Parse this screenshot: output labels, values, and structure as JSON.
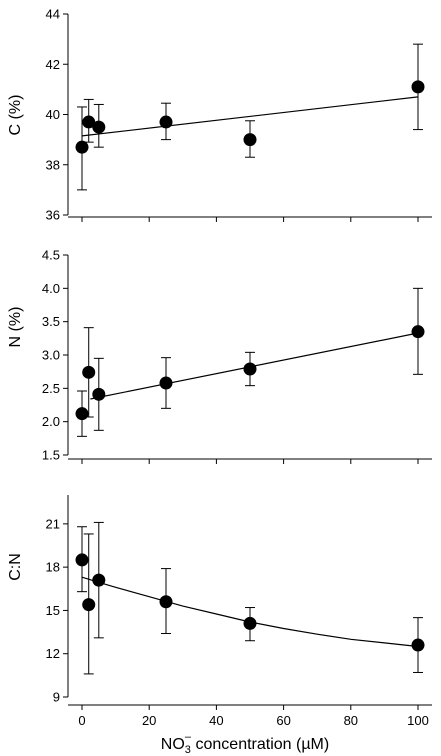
{
  "chart_data": [
    {
      "type": "scatter",
      "panel": "C",
      "ylabel": "C (%)",
      "ylim": [
        36,
        44
      ],
      "yticks": [
        36,
        38,
        40,
        42,
        44
      ],
      "xlim": [
        -5,
        105
      ],
      "xticks": [
        0,
        20,
        40,
        60,
        80,
        100
      ],
      "x": [
        0,
        2,
        5,
        25,
        50,
        100
      ],
      "y": [
        38.7,
        39.7,
        39.5,
        39.7,
        39.0,
        41.1
      ],
      "err_low": [
        37.0,
        38.9,
        38.7,
        39.0,
        38.3,
        39.4
      ],
      "err_high": [
        40.3,
        40.6,
        40.4,
        40.45,
        39.75,
        42.8
      ],
      "fit": {
        "kind": "linear",
        "x": [
          0,
          100
        ],
        "y": [
          39.15,
          40.7
        ]
      }
    },
    {
      "type": "scatter",
      "panel": "N",
      "ylabel": "N (%)",
      "ylim": [
        1.5,
        4.5
      ],
      "yticks": [
        "1.5",
        "2.0",
        "2.5",
        "3.0",
        "3.5",
        "4.0",
        "4.5"
      ],
      "xlim": [
        -5,
        105
      ],
      "xticks": [
        0,
        20,
        40,
        60,
        80,
        100
      ],
      "x": [
        0,
        2,
        5,
        25,
        50,
        100
      ],
      "y": [
        2.12,
        2.74,
        2.41,
        2.58,
        2.79,
        3.35
      ],
      "err_low": [
        1.78,
        2.07,
        1.87,
        2.2,
        2.54,
        2.71
      ],
      "err_high": [
        2.46,
        3.41,
        2.95,
        2.96,
        3.04,
        4.0
      ],
      "fit": {
        "kind": "linear",
        "x": [
          2.5,
          100
        ],
        "y": [
          2.34,
          3.33
        ]
      }
    },
    {
      "type": "scatter",
      "panel": "C:N",
      "ylabel": "C:N",
      "ylim": [
        9,
        23
      ],
      "yticks": [
        9,
        12,
        15,
        18,
        21
      ],
      "xlim": [
        -5,
        105
      ],
      "xticks": [
        0,
        20,
        40,
        60,
        80,
        100
      ],
      "xlabel": "NO3- concentration (µM)",
      "x": [
        0,
        2,
        5,
        25,
        50,
        100
      ],
      "y": [
        18.5,
        15.4,
        17.1,
        15.6,
        14.1,
        12.6
      ],
      "err_low": [
        16.3,
        10.6,
        13.1,
        13.4,
        12.9,
        10.7
      ],
      "err_high": [
        20.8,
        20.3,
        21.1,
        17.9,
        15.2,
        14.5
      ],
      "fit": {
        "kind": "curve",
        "x": [
          0,
          5,
          10,
          20,
          30,
          40,
          50,
          60,
          70,
          80,
          90,
          100
        ],
        "y": [
          17.3,
          16.95,
          16.6,
          15.95,
          15.3,
          14.75,
          14.2,
          13.75,
          13.35,
          13.0,
          12.75,
          12.5
        ]
      }
    }
  ],
  "xlabel_parts": {
    "base": "NO",
    "sub": "3",
    "sup": "–",
    "rest": " concentration (µM)"
  }
}
